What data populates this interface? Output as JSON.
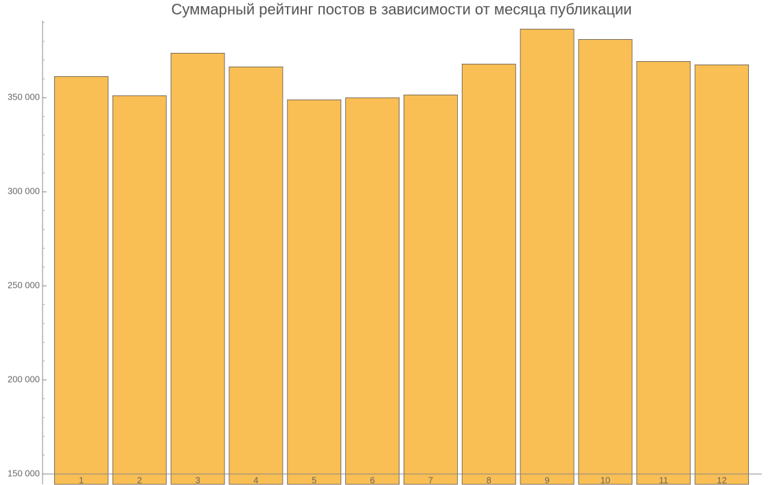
{
  "chart_data": {
    "type": "bar",
    "title": "Суммарный рейтинг постов в зависимости от месяца публикации",
    "categories": [
      "1",
      "2",
      "3",
      "4",
      "5",
      "6",
      "7",
      "8",
      "9",
      "10",
      "11",
      "12"
    ],
    "values": [
      361300,
      351100,
      373700,
      366400,
      348900,
      350000,
      351500,
      367900,
      386500,
      381000,
      369300,
      367500
    ],
    "color": "#f9be54",
    "ylim": [
      144500,
      391000
    ],
    "yticks": [
      {
        "value": 150000,
        "label": "150 000"
      },
      {
        "value": 200000,
        "label": "200 000"
      },
      {
        "value": 250000,
        "label": "250 000"
      },
      {
        "value": 300000,
        "label": "300 000"
      },
      {
        "value": 350000,
        "label": "350 000"
      }
    ]
  }
}
